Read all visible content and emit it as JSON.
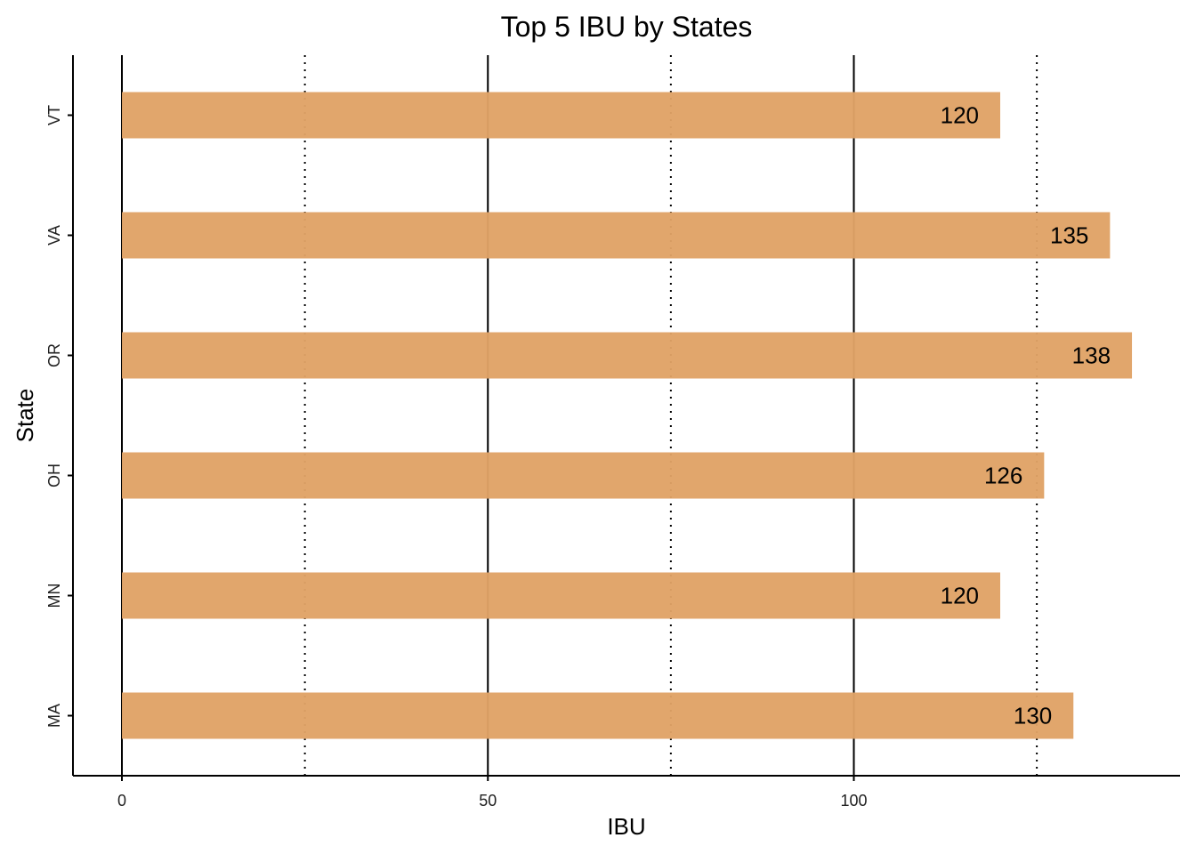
{
  "chart_data": {
    "type": "bar",
    "orientation": "horizontal",
    "title": "Top 5 IBU by States",
    "xlabel": "IBU",
    "ylabel": "State",
    "categories": [
      "MA",
      "MN",
      "OH",
      "OR",
      "VA",
      "VT"
    ],
    "values": [
      130,
      120,
      126,
      138,
      135,
      120
    ],
    "data_labels": [
      "130",
      "120",
      "126",
      "138",
      "135",
      "120"
    ],
    "xlim": [
      0,
      143
    ],
    "x_ticks": [
      0,
      50,
      100
    ],
    "x_tick_labels": [
      "0",
      "50",
      "100"
    ],
    "major_gridlines_x": [
      0,
      50,
      100
    ],
    "minor_gridlines_x": [
      25,
      75,
      125
    ],
    "bar_color": "#E0A266",
    "grid": true,
    "legend": "none"
  }
}
